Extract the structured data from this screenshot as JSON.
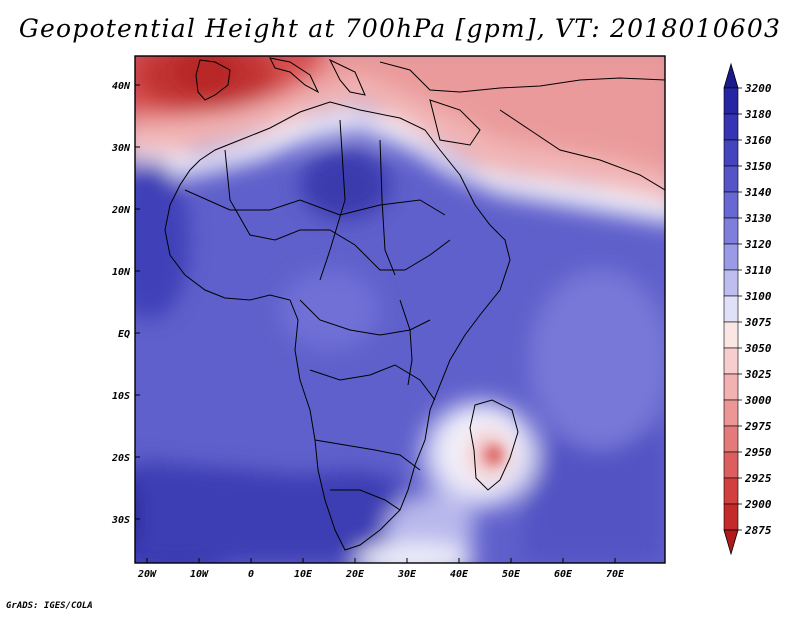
{
  "title": "Geopotential Height at 700hPa [gpm], VT: 2018010603",
  "footer": "GrADS: IGES/COLA",
  "map": {
    "variable": "Geopotential Height",
    "level": "700hPa",
    "units": "gpm",
    "valid_time": "2018010603",
    "lon_range": [
      -25,
      80
    ],
    "lat_range": [
      -37,
      45
    ],
    "lon_ticks": [
      {
        "value": -20,
        "label": "20W"
      },
      {
        "value": -10,
        "label": "10W"
      },
      {
        "value": 0,
        "label": "0"
      },
      {
        "value": 10,
        "label": "10E"
      },
      {
        "value": 20,
        "label": "20E"
      },
      {
        "value": 30,
        "label": "30E"
      },
      {
        "value": 40,
        "label": "40E"
      },
      {
        "value": 50,
        "label": "50E"
      },
      {
        "value": 60,
        "label": "60E"
      },
      {
        "value": 70,
        "label": "70E"
      }
    ],
    "lat_ticks": [
      {
        "value": 40,
        "label": "40N"
      },
      {
        "value": 30,
        "label": "30N"
      },
      {
        "value": 20,
        "label": "20N"
      },
      {
        "value": 10,
        "label": "10N"
      },
      {
        "value": 0,
        "label": "EQ"
      },
      {
        "value": -10,
        "label": "10S"
      },
      {
        "value": -20,
        "label": "20S"
      },
      {
        "value": -30,
        "label": "30S"
      }
    ]
  },
  "colorbar": {
    "levels": [
      "3200",
      "3180",
      "3160",
      "3150",
      "3140",
      "3130",
      "3120",
      "3110",
      "3100",
      "3075",
      "3050",
      "3025",
      "3000",
      "2975",
      "2950",
      "2925",
      "2900",
      "2875"
    ],
    "colors": [
      "#1a1a8c",
      "#2626a4",
      "#3434b4",
      "#4444bf",
      "#5555c8",
      "#6868d2",
      "#7e7edc",
      "#9a9ae6",
      "#bdbdf0",
      "#e0e0f8",
      "#fbe6e6",
      "#f7cdcd",
      "#f2b2b2",
      "#ec9696",
      "#e57a7a",
      "#dd5e5e",
      "#d23f3f",
      "#c42a2a",
      "#b01a1a"
    ]
  }
}
